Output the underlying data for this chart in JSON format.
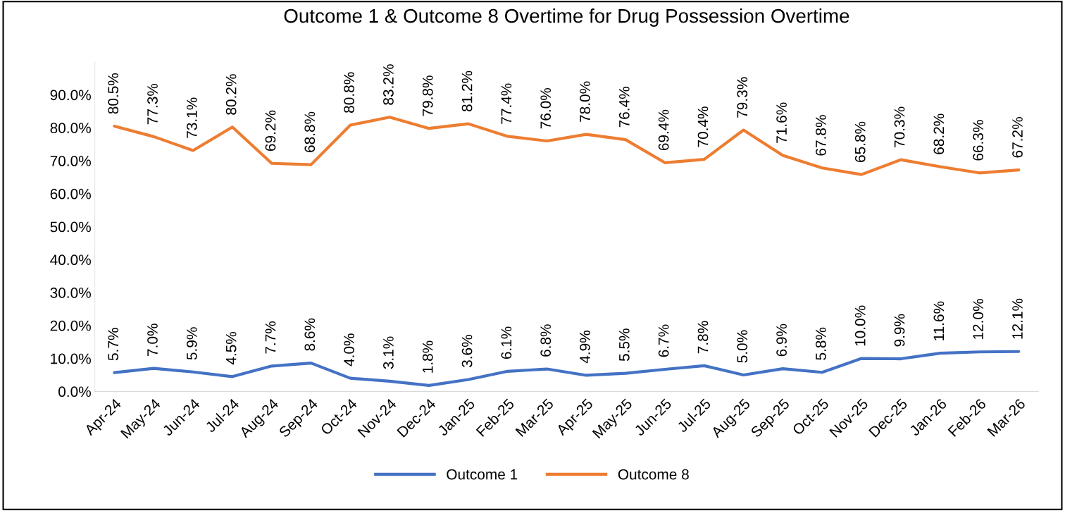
{
  "chart_data": {
    "type": "line",
    "title": "Outcome 1 & Outcome 8 Overtime for Drug Possession Overtime",
    "categories": [
      "Apr-24",
      "May-24",
      "Jun-24",
      "Jul-24",
      "Aug-24",
      "Sep-24",
      "Oct-24",
      "Nov-24",
      "Dec-24",
      "Jan-25",
      "Feb-25",
      "Mar-25",
      "Apr-25",
      "May-25",
      "Jun-25",
      "Jul-25",
      "Aug-25",
      "Sep-25",
      "Oct-25",
      "Nov-25",
      "Dec-25",
      "Jan-26",
      "Feb-26",
      "Mar-26"
    ],
    "series": [
      {
        "name": "Outcome 1",
        "color": "#4472c4",
        "values": [
          5.7,
          7.0,
          5.9,
          4.5,
          7.7,
          8.6,
          4.0,
          3.1,
          1.8,
          3.6,
          6.1,
          6.8,
          4.9,
          5.5,
          6.7,
          7.8,
          5.0,
          6.9,
          5.8,
          10.0,
          9.9,
          11.6,
          12.0,
          12.1
        ],
        "value_labels": [
          "5.7%",
          "7.0%",
          "5.9%",
          "4.5%",
          "7.7%",
          "8.6%",
          "4.0%",
          "3.1%",
          "1.8%",
          "3.6%",
          "6.1%",
          "6.8%",
          "4.9%",
          "5.5%",
          "6.7%",
          "7.8%",
          "5.0%",
          "6.9%",
          "5.8%",
          "10.0%",
          "9.9%",
          "11.6%",
          "12.0%",
          "12.1%"
        ]
      },
      {
        "name": "Outcome 8",
        "color": "#ed7d31",
        "values": [
          80.5,
          77.3,
          73.1,
          80.2,
          69.2,
          68.8,
          80.8,
          83.2,
          79.8,
          81.2,
          77.4,
          76.0,
          78.0,
          76.4,
          69.4,
          70.4,
          79.3,
          71.6,
          67.8,
          65.8,
          70.3,
          68.2,
          66.3,
          67.2
        ],
        "value_labels": [
          "80.5%",
          "77.3%",
          "73.1%",
          "80.2%",
          "69.2%",
          "68.8%",
          "80.8%",
          "83.2%",
          "79.8%",
          "81.2%",
          "77.4%",
          "76.0%",
          "78.0%",
          "76.4%",
          "69.4%",
          "70.4%",
          "79.3%",
          "71.6%",
          "67.8%",
          "65.8%",
          "70.3%",
          "68.2%",
          "66.3%",
          "67.2%"
        ]
      }
    ],
    "ylim": [
      0,
      100
    ],
    "yticks": [
      {
        "value": 0,
        "label": "0.0%"
      },
      {
        "value": 10,
        "label": "10.0%"
      },
      {
        "value": 20,
        "label": "20.0%"
      },
      {
        "value": 30,
        "label": "30.0%"
      },
      {
        "value": 40,
        "label": "40.0%"
      },
      {
        "value": 50,
        "label": "50.0%"
      },
      {
        "value": 60,
        "label": "60.0%"
      },
      {
        "value": 70,
        "label": "70.0%"
      },
      {
        "value": 80,
        "label": "80.0%"
      },
      {
        "value": 90,
        "label": "90.0%"
      }
    ],
    "grid": false,
    "legend": "bottom",
    "marker": "none",
    "line_style": "solid"
  }
}
